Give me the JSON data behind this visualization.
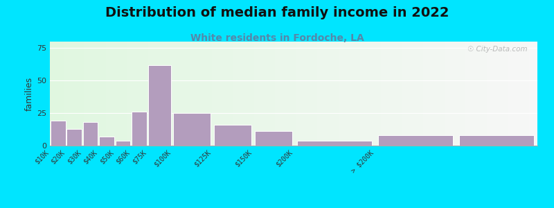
{
  "title": "Distribution of median family income in 2022",
  "subtitle": "White residents in Fordoche, LA",
  "ylabel": "families",
  "bar_color": "#b39dbd",
  "background_outer": "#00e5ff",
  "yticks": [
    0,
    25,
    50,
    75
  ],
  "ylim": [
    0,
    80
  ],
  "title_fontsize": 14,
  "subtitle_fontsize": 10,
  "subtitle_color": "#5588aa",
  "watermark": "☉ City-Data.com",
  "bar_left_edges": [
    0,
    10,
    20,
    30,
    40,
    50,
    60,
    75,
    100,
    125,
    150,
    200,
    250
  ],
  "bar_widths": [
    10,
    10,
    10,
    10,
    10,
    10,
    15,
    25,
    25,
    25,
    50,
    50,
    50
  ],
  "bar_heights": [
    19,
    13,
    18,
    7,
    4,
    26,
    62,
    25,
    16,
    11,
    4,
    8,
    8
  ],
  "xtick_positions": [
    0,
    10,
    20,
    30,
    40,
    50,
    60,
    75,
    100,
    125,
    150,
    200,
    250
  ],
  "xtick_labels": [
    "$10K",
    "$20K",
    "$30K",
    "$40K",
    "$50K",
    "$60K",
    "$75K",
    "$100K",
    "$125K",
    "$150K",
    "$200K",
    "> $200K",
    ""
  ],
  "xlim": [
    0,
    300
  ]
}
